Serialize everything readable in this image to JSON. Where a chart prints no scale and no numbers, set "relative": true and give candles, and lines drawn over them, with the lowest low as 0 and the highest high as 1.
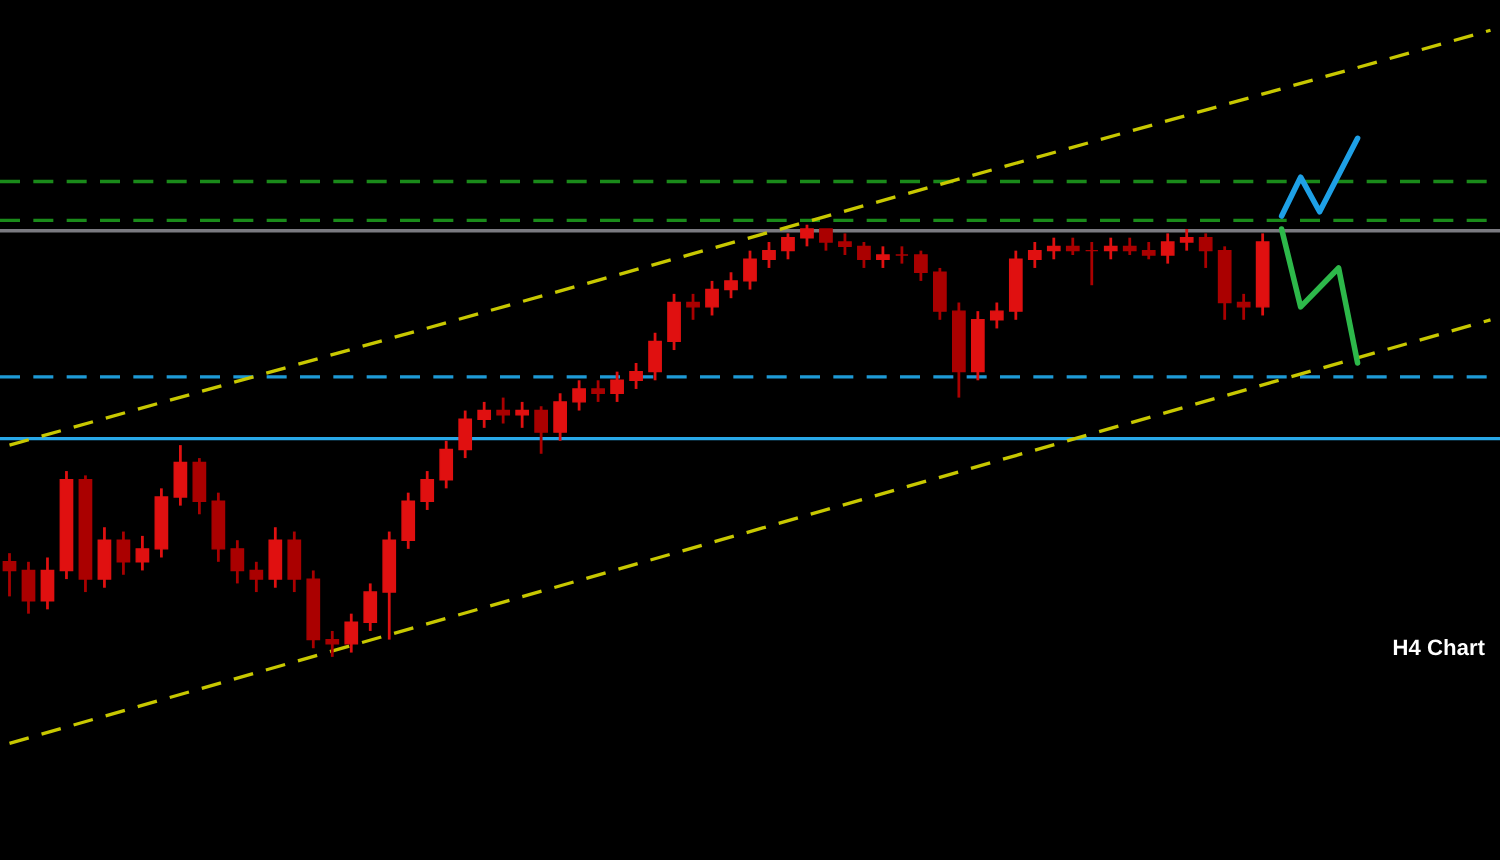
{
  "chart_data": {
    "type": "candlestick",
    "relative": true,
    "ylim": [
      -0.47,
      1.52
    ],
    "annotations": [
      "H4 Chart"
    ],
    "categories": [
      null,
      null,
      null,
      null,
      null,
      null,
      null,
      null,
      null,
      null,
      null,
      null,
      null,
      null,
      null,
      null,
      null,
      null,
      null,
      null,
      null,
      null,
      null,
      null,
      null,
      null,
      null,
      null,
      null,
      null,
      null,
      null,
      null,
      null,
      null,
      null,
      null,
      null,
      null,
      null,
      null,
      null,
      null,
      null,
      null,
      null,
      null,
      null,
      null,
      null,
      null,
      null,
      null,
      null,
      null,
      null,
      null,
      null,
      null,
      null,
      null,
      null,
      null,
      null,
      null,
      null,
      null,
      null,
      null,
      null,
      null,
      null,
      null,
      null,
      null,
      null,
      null,
      null,
      null
    ],
    "series": [
      {
        "type": "candlestick",
        "colors": [
          "#aa0000",
          "#aa0000",
          "#e01010",
          "#e01010",
          "#aa0000",
          "#e01010",
          "#aa0000",
          "#e01010",
          "#e01010",
          "#e01010",
          "#aa0000",
          "#aa0000",
          "#aa0000",
          "#aa0000",
          "#e01010",
          "#aa0000",
          "#aa0000",
          "#aa0000",
          "#e01010",
          "#e01010",
          "#e01010",
          "#e01010",
          "#e01010",
          "#e01010",
          "#e01010",
          "#e01010",
          "#aa0000",
          "#e01010",
          "#aa0000",
          "#e01010",
          "#e01010",
          "#aa0000",
          "#e01010",
          "#e01010",
          "#e01010",
          "#e01010",
          "#aa0000",
          "#e01010",
          "#e01010",
          "#e01010",
          "#e01010",
          "#e01010",
          "#e01010",
          "#aa0000",
          "#aa0000",
          "#aa0000",
          "#e01010",
          "#aa0000",
          "#aa0000",
          "#aa0000",
          "#aa0000",
          "#e01010",
          "#e01010",
          "#e01010",
          "#e01010",
          "#e01010",
          "#aa0000",
          "#aa0000",
          "#e01010",
          "#aa0000",
          "#aa0000",
          "#e01010",
          "#e01010",
          "#aa0000",
          "#aa0000",
          "#aa0000",
          "#e01010",
          null,
          null,
          null,
          null,
          null,
          null,
          null,
          null,
          null,
          null,
          null,
          null
        ],
        "ohlc": [
          [
            0.22,
            0.24,
            0.14,
            0.2
          ],
          [
            0.2,
            0.22,
            0.1,
            0.13
          ],
          [
            0.13,
            0.23,
            0.11,
            0.2
          ],
          [
            0.2,
            0.43,
            0.18,
            0.41
          ],
          [
            0.41,
            0.42,
            0.15,
            0.18
          ],
          [
            0.18,
            0.3,
            0.16,
            0.27
          ],
          [
            0.27,
            0.29,
            0.19,
            0.22
          ],
          [
            0.22,
            0.28,
            0.2,
            0.25
          ],
          [
            0.25,
            0.39,
            0.23,
            0.37
          ],
          [
            0.37,
            0.49,
            0.35,
            0.45
          ],
          [
            0.45,
            0.46,
            0.33,
            0.36
          ],
          [
            0.36,
            0.38,
            0.22,
            0.25
          ],
          [
            0.25,
            0.27,
            0.17,
            0.2
          ],
          [
            0.2,
            0.22,
            0.15,
            0.18
          ],
          [
            0.18,
            0.3,
            0.16,
            0.27
          ],
          [
            0.27,
            0.29,
            0.15,
            0.18
          ],
          [
            0.18,
            0.2,
            0.02,
            0.04
          ],
          [
            0.04,
            0.06,
            0.0,
            0.03
          ],
          [
            0.03,
            0.1,
            0.01,
            0.08
          ],
          [
            0.08,
            0.17,
            0.06,
            0.15
          ],
          [
            0.15,
            0.29,
            0.04,
            0.27
          ],
          [
            0.27,
            0.38,
            0.25,
            0.36
          ],
          [
            0.36,
            0.43,
            0.34,
            0.41
          ],
          [
            0.41,
            0.5,
            0.39,
            0.48
          ],
          [
            0.48,
            0.57,
            0.46,
            0.55
          ],
          [
            0.55,
            0.59,
            0.53,
            0.57
          ],
          [
            0.57,
            0.6,
            0.54,
            0.56
          ],
          [
            0.56,
            0.59,
            0.53,
            0.57
          ],
          [
            0.57,
            0.58,
            0.47,
            0.52
          ],
          [
            0.52,
            0.61,
            0.5,
            0.59
          ],
          [
            0.59,
            0.64,
            0.57,
            0.62
          ],
          [
            0.62,
            0.64,
            0.59,
            0.61
          ],
          [
            0.61,
            0.66,
            0.59,
            0.64
          ],
          [
            0.64,
            0.68,
            0.62,
            0.66
          ],
          [
            0.66,
            0.75,
            0.64,
            0.73
          ],
          [
            0.73,
            0.84,
            0.71,
            0.82
          ],
          [
            0.82,
            0.84,
            0.78,
            0.81
          ],
          [
            0.81,
            0.87,
            0.79,
            0.85
          ],
          [
            0.85,
            0.89,
            0.83,
            0.87
          ],
          [
            0.87,
            0.94,
            0.85,
            0.92
          ],
          [
            0.92,
            0.96,
            0.9,
            0.94
          ],
          [
            0.94,
            0.98,
            0.92,
            0.97
          ],
          [
            0.97,
            1.0,
            0.95,
            0.99
          ],
          [
            0.99,
            0.99,
            0.94,
            0.96
          ],
          [
            0.96,
            0.98,
            0.93,
            0.95
          ],
          [
            0.95,
            0.96,
            0.9,
            0.92
          ],
          [
            0.92,
            0.95,
            0.9,
            0.93
          ],
          [
            0.93,
            0.95,
            0.91,
            0.93
          ],
          [
            0.93,
            0.94,
            0.87,
            0.89
          ],
          [
            0.89,
            0.9,
            0.78,
            0.8
          ],
          [
            0.8,
            0.82,
            0.6,
            0.66
          ],
          [
            0.66,
            0.8,
            0.64,
            0.78
          ],
          [
            0.78,
            0.82,
            0.76,
            0.8
          ],
          [
            0.8,
            0.94,
            0.78,
            0.92
          ],
          [
            0.92,
            0.96,
            0.9,
            0.94
          ],
          [
            0.94,
            0.97,
            0.92,
            0.95
          ],
          [
            0.95,
            0.97,
            0.93,
            0.94
          ],
          [
            0.94,
            0.96,
            0.86,
            0.94
          ],
          [
            0.94,
            0.97,
            0.92,
            0.95
          ],
          [
            0.95,
            0.97,
            0.93,
            0.94
          ],
          [
            0.94,
            0.96,
            0.92,
            0.93
          ],
          [
            0.93,
            0.98,
            0.91,
            0.96
          ],
          [
            0.96,
            0.99,
            0.94,
            0.97
          ],
          [
            0.97,
            0.98,
            0.9,
            0.94
          ],
          [
            0.94,
            0.95,
            0.78,
            0.82
          ],
          [
            0.82,
            0.84,
            0.78,
            0.81
          ],
          [
            0.81,
            0.98,
            0.79,
            0.96
          ],
          null,
          null,
          null,
          null,
          null,
          null,
          null,
          null,
          null,
          null,
          null,
          null
        ]
      },
      {
        "type": "line",
        "color": "#c8c800",
        "line_style": "dashed",
        "values": [
          0.49,
          null,
          null,
          null,
          null,
          null,
          null,
          null,
          null,
          null,
          null,
          null,
          null,
          null,
          null,
          null,
          null,
          null,
          null,
          null,
          null,
          null,
          null,
          null,
          null,
          null,
          null,
          null,
          null,
          null,
          null,
          null,
          null,
          null,
          null,
          null,
          null,
          null,
          null,
          null,
          null,
          null,
          null,
          null,
          null,
          null,
          null,
          null,
          null,
          null,
          null,
          null,
          null,
          null,
          null,
          null,
          null,
          null,
          null,
          null,
          null,
          null,
          null,
          null,
          null,
          null,
          null,
          null,
          null,
          null,
          null,
          null,
          null,
          null,
          null,
          null,
          null,
          null,
          1.45
        ]
      },
      {
        "type": "line",
        "color": "#c8c800",
        "line_style": "dashed",
        "values": [
          -0.2,
          null,
          null,
          null,
          null,
          null,
          null,
          null,
          null,
          null,
          null,
          null,
          null,
          null,
          null,
          null,
          null,
          null,
          null,
          null,
          null,
          null,
          null,
          null,
          null,
          null,
          null,
          null,
          null,
          null,
          null,
          null,
          null,
          null,
          null,
          null,
          null,
          null,
          null,
          null,
          null,
          null,
          null,
          null,
          null,
          null,
          null,
          null,
          null,
          null,
          null,
          null,
          null,
          null,
          null,
          null,
          null,
          null,
          null,
          null,
          null,
          null,
          null,
          null,
          null,
          null,
          null,
          null,
          null,
          null,
          null,
          null,
          null,
          null,
          null,
          null,
          null,
          null,
          0.78
        ]
      },
      {
        "type": "line",
        "color": "#1ea0e6",
        "line_style": "solid",
        "values": [
          null,
          null,
          null,
          null,
          null,
          null,
          null,
          null,
          null,
          null,
          null,
          null,
          null,
          null,
          null,
          null,
          null,
          null,
          null,
          null,
          null,
          null,
          null,
          null,
          null,
          null,
          null,
          null,
          null,
          null,
          null,
          null,
          null,
          null,
          null,
          null,
          null,
          null,
          null,
          null,
          null,
          null,
          null,
          null,
          null,
          null,
          null,
          null,
          null,
          null,
          null,
          null,
          null,
          null,
          null,
          null,
          null,
          null,
          null,
          null,
          null,
          null,
          null,
          null,
          null,
          null,
          null,
          1.02,
          1.11,
          1.03,
          null,
          1.2,
          null,
          null,
          null,
          null,
          null,
          null,
          null
        ]
      },
      {
        "type": "line",
        "color": "#2db84a",
        "line_style": "solid",
        "values": [
          null,
          null,
          null,
          null,
          null,
          null,
          null,
          null,
          null,
          null,
          null,
          null,
          null,
          null,
          null,
          null,
          null,
          null,
          null,
          null,
          null,
          null,
          null,
          null,
          null,
          null,
          null,
          null,
          null,
          null,
          null,
          null,
          null,
          null,
          null,
          null,
          null,
          null,
          null,
          null,
          null,
          null,
          null,
          null,
          null,
          null,
          null,
          null,
          null,
          null,
          null,
          null,
          null,
          null,
          null,
          null,
          null,
          null,
          null,
          null,
          null,
          null,
          null,
          null,
          null,
          null,
          null,
          0.99,
          0.81,
          null,
          0.9,
          0.68,
          null,
          null,
          null,
          null,
          null,
          null,
          null
        ]
      }
    ],
    "ref_lines": [
      {
        "axis": "y",
        "value": 1.1,
        "color": "#1a8a1a",
        "line_style": "dashed"
      },
      {
        "axis": "y",
        "value": 1.01,
        "color": "#1a8a1a",
        "line_style": "dashed"
      },
      {
        "axis": "y",
        "value": 0.986,
        "color": "#7a7a80",
        "line_style": "solid"
      },
      {
        "axis": "y",
        "value": 0.648,
        "color": "#1e9ad6",
        "line_style": "dashed"
      },
      {
        "axis": "y",
        "value": 0.505,
        "color": "#29a8e8",
        "line_style": "solid"
      }
    ]
  }
}
